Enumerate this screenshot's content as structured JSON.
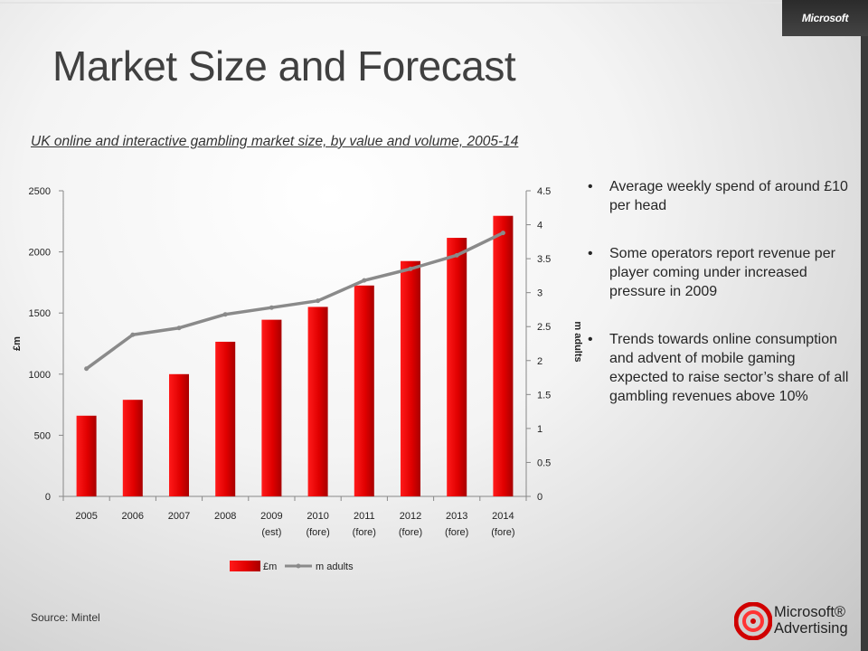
{
  "header": {
    "brand": "Microsoft",
    "title": "Market Size and Forecast",
    "subtitle": "UK online and interactive gambling market size, by value and volume, 2005-14"
  },
  "bullets": [
    "Average weekly spend of around £10 per head",
    "Some operators report revenue per player coming under increased pressure in 2009",
    "Trends towards online consumption and advent of mobile gaming expected to raise sector’s share of all gambling revenues above 10%"
  ],
  "footer": {
    "source": "Source: Mintel",
    "logo_line1": "Microsoft®",
    "logo_line2": "Advertising"
  },
  "colors": {
    "bar": "#e00000",
    "line": "#8a8a8a"
  },
  "chart_data": {
    "type": "bar",
    "categories": [
      [
        "2005",
        ""
      ],
      [
        "2006",
        ""
      ],
      [
        "2007",
        ""
      ],
      [
        "2008",
        ""
      ],
      [
        "2009",
        "(est)"
      ],
      [
        "2010",
        "(fore)"
      ],
      [
        "2011",
        "(fore)"
      ],
      [
        "2012",
        "(fore)"
      ],
      [
        "2013",
        "(fore)"
      ],
      [
        "2014",
        "(fore)"
      ]
    ],
    "series": [
      {
        "name": "£m",
        "type": "bar",
        "axis": "left",
        "values": [
          660,
          790,
          1000,
          1265,
          1445,
          1550,
          1725,
          1925,
          2115,
          2295
        ]
      },
      {
        "name": "m adults",
        "type": "line",
        "axis": "right",
        "values": [
          1.88,
          2.38,
          2.48,
          2.68,
          2.78,
          2.88,
          3.18,
          3.35,
          3.55,
          3.88
        ]
      }
    ],
    "y_left": {
      "label": "£m",
      "ticks": [
        0,
        500,
        1000,
        1500,
        2000,
        2500
      ],
      "range": [
        0,
        2500
      ]
    },
    "y_right": {
      "label": "m adults",
      "ticks": [
        0,
        0.5,
        1,
        1.5,
        2,
        2.5,
        3,
        3.5,
        4,
        4.5
      ],
      "range": [
        0,
        4.5
      ]
    },
    "legend": {
      "position": "bottom"
    },
    "grid": false
  }
}
